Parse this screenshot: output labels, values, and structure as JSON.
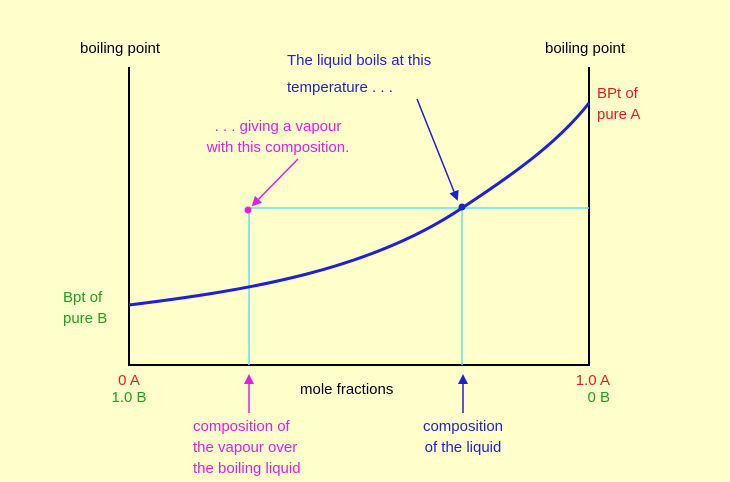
{
  "axes": {
    "left_label": "boiling point",
    "right_label": "boiling point",
    "x_label": "mole fractions"
  },
  "left_ticks": {
    "a": "0 A",
    "b": "1.0 B"
  },
  "right_ticks": {
    "a": "1.0 A",
    "b": "0 B"
  },
  "bpt_b": {
    "line1": "Bpt of",
    "line2": "pure B"
  },
  "bpt_a": {
    "line1": "BPt of",
    "line2": "pure A"
  },
  "liquid_note": {
    "line1": "The liquid boils at this",
    "line2": "temperature . . ."
  },
  "vapour_note": {
    "line1": ". . . giving a vapour",
    "line2": "with this composition."
  },
  "liquid_comp": {
    "line1": "composition",
    "line2": "of the liquid"
  },
  "vapour_comp": {
    "line1": "composition of",
    "line2": "the vapour over",
    "line3": "the boiling liquid"
  },
  "colors": {
    "axis": "#000000",
    "curve": "#1f1fd6",
    "guide": "#66e0f0",
    "liquid": "#1f1fd6",
    "vapour": "#e020e0",
    "pure_a": "#e02020",
    "pure_b": "#20a020"
  }
}
